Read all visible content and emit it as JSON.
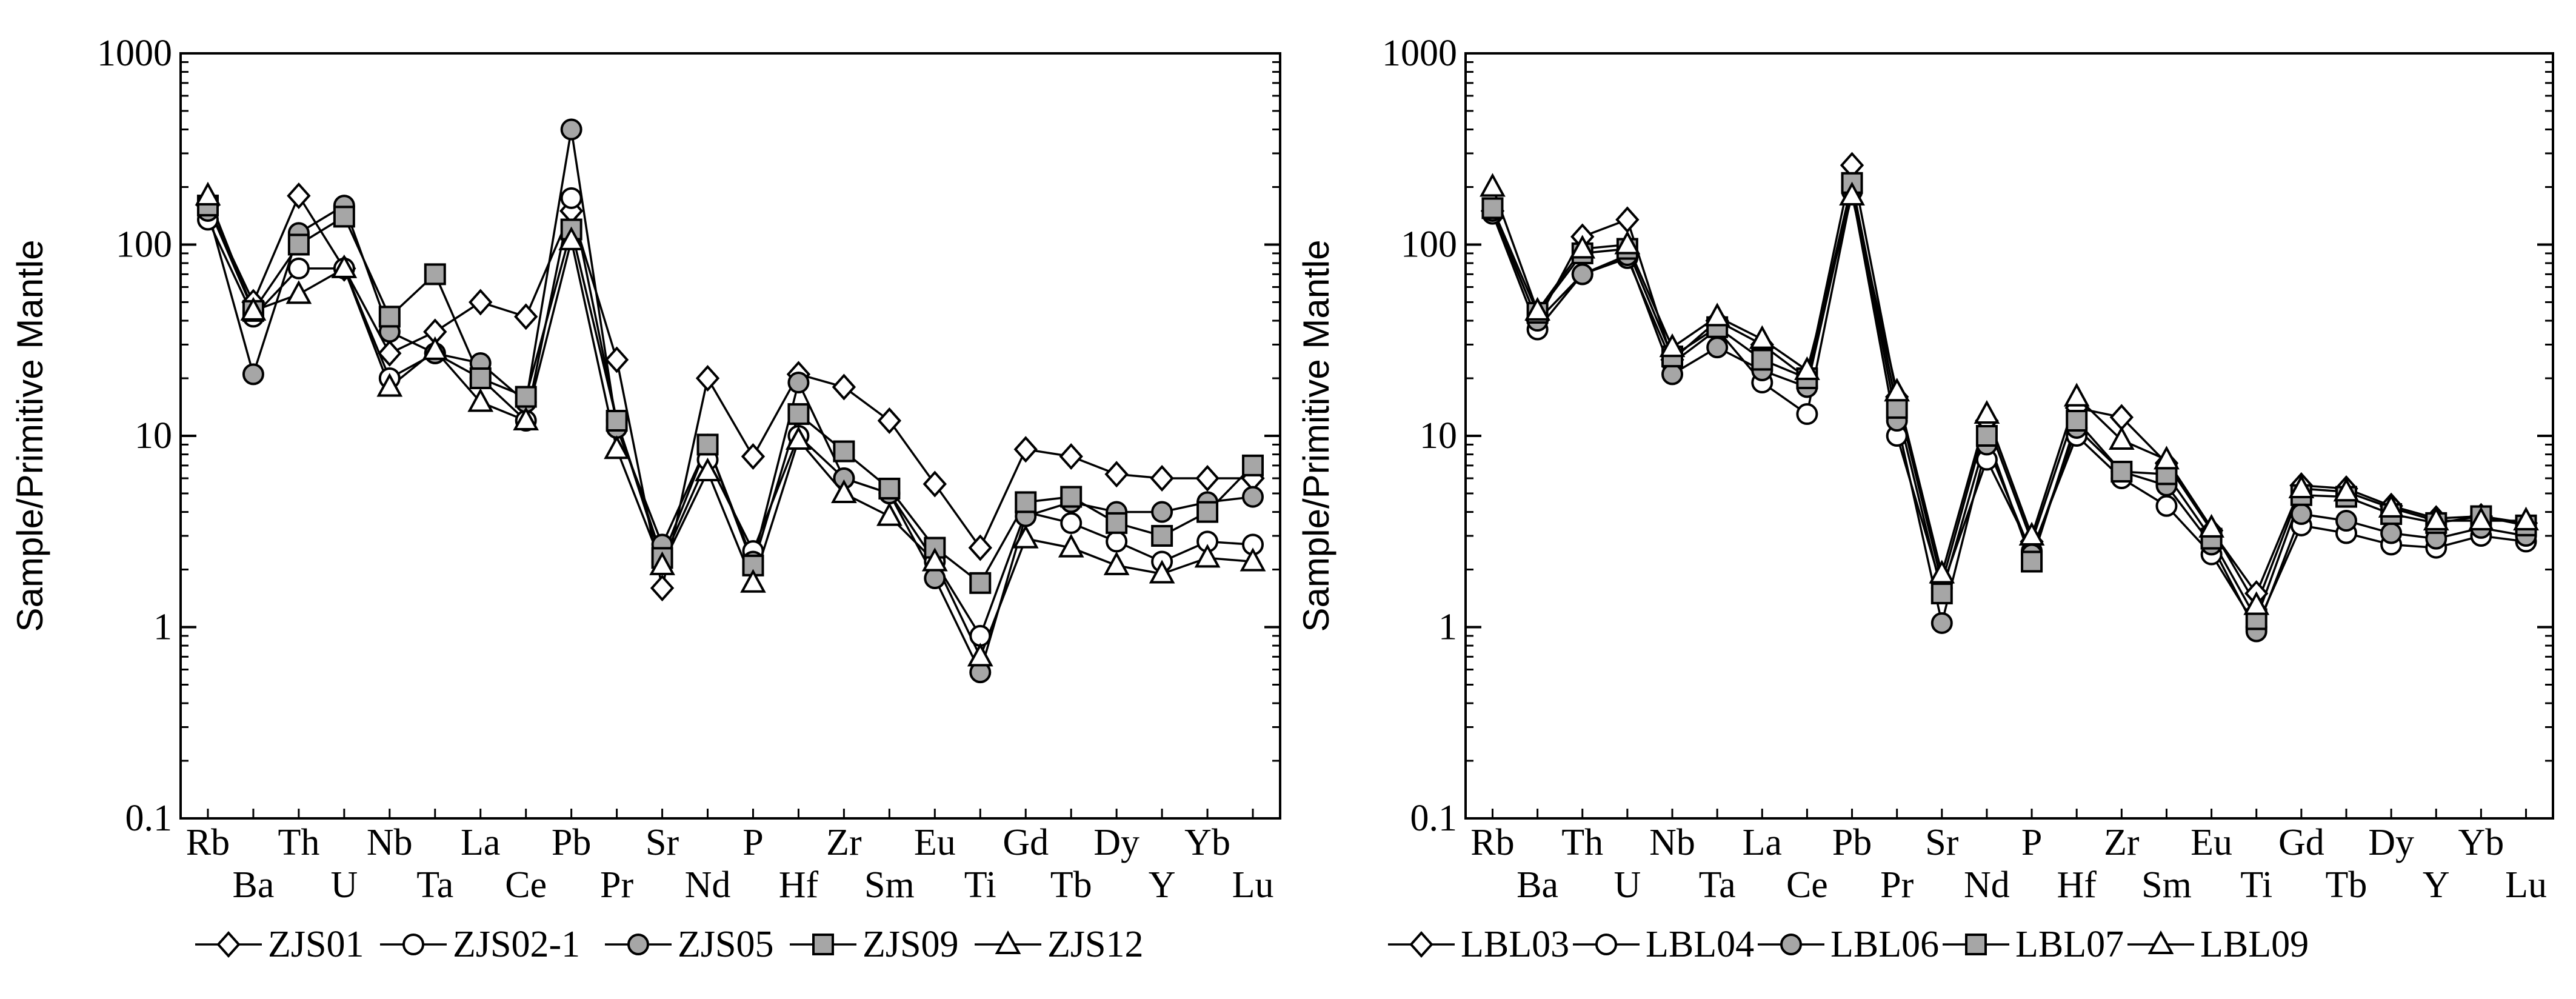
{
  "chart_data": [
    {
      "type": "line",
      "ylabel": "Sample/Primitive Mantle",
      "yscale": "log",
      "ylim": [
        0.1,
        1000
      ],
      "yticks": [
        "1000",
        "100",
        "10",
        "1",
        "0.1"
      ],
      "categories_top": [
        "Rb",
        "Th",
        "Nb",
        "La",
        "Pb",
        "Sr",
        "P",
        "Zr",
        "Eu",
        "Gd",
        "Dy",
        "Yb"
      ],
      "categories_bottom": [
        "Ba",
        "U",
        "Ta",
        "Ce",
        "Pr",
        "Nd",
        "Hf",
        "Sm",
        "Ti",
        "Tb",
        "Y",
        "Lu"
      ],
      "x": [
        "Rb",
        "Ba",
        "Th",
        "U",
        "Nb",
        "Ta",
        "La",
        "Ce",
        "Pb",
        "Pr",
        "Sr",
        "Nd",
        "P",
        "Hf",
        "Zr",
        "Sm",
        "Eu",
        "Ti",
        "Gd",
        "Tb",
        "Dy",
        "Y",
        "Yb",
        "Lu"
      ],
      "series": [
        {
          "name": "ZJS01",
          "marker": "diamond",
          "fill": "#ffffff",
          "values": [
            160,
            50,
            180,
            75,
            27,
            35,
            50,
            42,
            150,
            25,
            1.6,
            20,
            7.8,
            21,
            18,
            12,
            5.6,
            2.6,
            8.5,
            7.8,
            6.3,
            6,
            6,
            6
          ]
        },
        {
          "name": "ZJS02-1",
          "marker": "circle",
          "fill": "#ffffff",
          "values": [
            135,
            42,
            75,
            75,
            20,
            27,
            20,
            12,
            175,
            12,
            2.2,
            7.5,
            2.5,
            10,
            6,
            5,
            2.2,
            0.9,
            4,
            3.5,
            2.8,
            2.2,
            2.8,
            2.7
          ]
        },
        {
          "name": "ZJS05",
          "marker": "circle",
          "fill": "#a6a6a6",
          "values": [
            150,
            21,
            115,
            160,
            35,
            27,
            24,
            15,
            400,
            11,
            2.7,
            9,
            2.2,
            19,
            6,
            5,
            1.8,
            0.58,
            3.8,
            4.5,
            4,
            4,
            4.5,
            4.8
          ]
        },
        {
          "name": "ZJS09",
          "marker": "square",
          "fill": "#a6a6a6",
          "values": [
            160,
            45,
            100,
            140,
            42,
            70,
            20,
            16,
            120,
            12,
            2.3,
            9,
            2.1,
            13,
            8.3,
            5.3,
            2.6,
            1.7,
            4.5,
            4.8,
            3.5,
            3,
            4,
            7
          ]
        },
        {
          "name": "ZJS12",
          "marker": "triangle",
          "fill": "#ffffff",
          "values": [
            180,
            45,
            55,
            75,
            18,
            28,
            15,
            12,
            105,
            8.5,
            2.1,
            6.5,
            1.7,
            9.5,
            5,
            3.8,
            2.2,
            0.7,
            2.9,
            2.6,
            2.1,
            1.9,
            2.3,
            2.2
          ]
        }
      ]
    },
    {
      "type": "line",
      "ylabel": "Sample/Primitive Mantle",
      "yscale": "log",
      "ylim": [
        0.1,
        1000
      ],
      "yticks": [
        "1000",
        "100",
        "10",
        "1",
        "0.1"
      ],
      "categories_top": [
        "Rb",
        "Th",
        "Nb",
        "La",
        "Pb",
        "Sr",
        "P",
        "Zr",
        "Eu",
        "Gd",
        "Dy",
        "Yb"
      ],
      "categories_bottom": [
        "Ba",
        "U",
        "Ta",
        "Ce",
        "Pr",
        "Nd",
        "Hf",
        "Sm",
        "Ti",
        "Tb",
        "Y",
        "Lu"
      ],
      "x": [
        "Rb",
        "Ba",
        "Th",
        "U",
        "Nb",
        "Ta",
        "La",
        "Ce",
        "Pb",
        "Pr",
        "Sr",
        "Nd",
        "P",
        "Hf",
        "Zr",
        "Sm",
        "Eu",
        "Ti",
        "Gd",
        "Tb",
        "Dy",
        "Y",
        "Yb",
        "Lu"
      ],
      "series": [
        {
          "name": "LBL03",
          "marker": "diamond",
          "fill": "#ffffff",
          "values": [
            150,
            40,
            110,
            135,
            25,
            40,
            30,
            20,
            260,
            16,
            1.7,
            12,
            2.8,
            14,
            12.5,
            7.2,
            3.2,
            1.5,
            5.5,
            5.3,
            4.3,
            3.7,
            3.8,
            3.5
          ]
        },
        {
          "name": "LBL04",
          "marker": "circle",
          "fill": "#ffffff",
          "values": [
            145,
            36,
            70,
            85,
            24,
            36,
            19,
            13,
            190,
            10,
            1.6,
            7.5,
            2.5,
            10,
            6,
            4.3,
            2.4,
            1.0,
            3.4,
            3.1,
            2.7,
            2.6,
            3.0,
            2.8
          ]
        },
        {
          "name": "LBL06",
          "marker": "circle",
          "fill": "#a6a6a6",
          "values": [
            150,
            40,
            70,
            88,
            21,
            29,
            22,
            18,
            200,
            12,
            1.05,
            9,
            2.4,
            11,
            6.5,
            5.5,
            2.7,
            0.95,
            3.9,
            3.6,
            3.1,
            2.9,
            3.3,
            3.0
          ]
        },
        {
          "name": "LBL07",
          "marker": "square",
          "fill": "#a6a6a6",
          "values": [
            155,
            44,
            90,
            95,
            26,
            37,
            25,
            20,
            210,
            14,
            1.5,
            10,
            2.2,
            12,
            6.5,
            6.3,
            2.9,
            1.1,
            4.9,
            4.8,
            3.9,
            3.5,
            3.8,
            3.4
          ]
        },
        {
          "name": "LBL09",
          "marker": "triangle",
          "fill": "#ffffff",
          "values": [
            200,
            45,
            95,
            100,
            29,
            42,
            32,
            22,
            180,
            17,
            1.9,
            13,
            3.0,
            16,
            9.5,
            7.5,
            3.3,
            1.3,
            5.3,
            5.1,
            4.2,
            3.6,
            3.6,
            3.6
          ]
        }
      ]
    }
  ]
}
